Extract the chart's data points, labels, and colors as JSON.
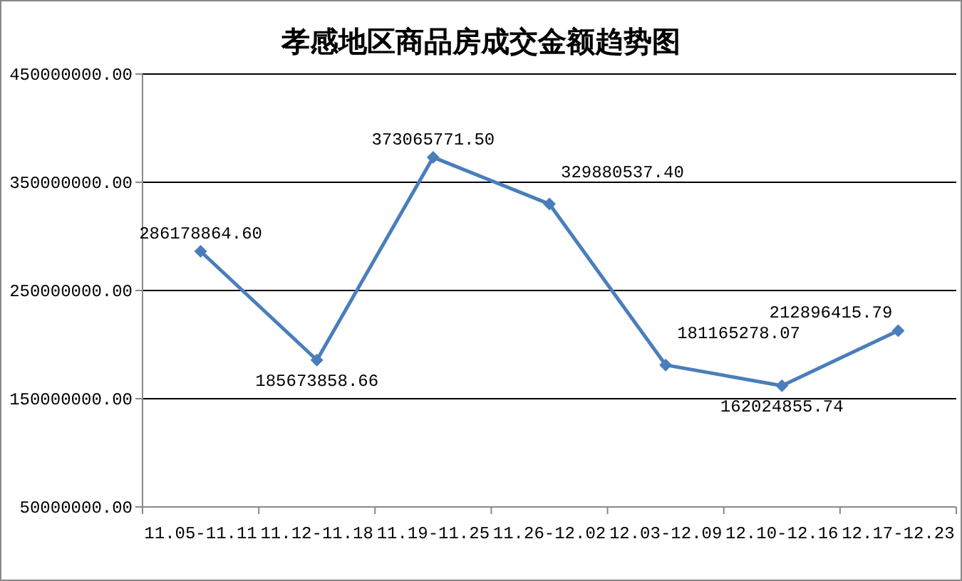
{
  "chart_data": {
    "type": "line",
    "title": "孝感地区商品房成交金额趋势图",
    "categories": [
      "11.05-11.11",
      "11.12-11.18",
      "11.19-11.25",
      "11.26-12.02",
      "12.03-12.09",
      "12.10-12.16",
      "12.17-12.23"
    ],
    "series": [
      {
        "color": "#4a7ebb",
        "values": [
          286178864.6,
          185673858.66,
          373065771.5,
          329880537.4,
          181165278.07,
          162024855.74,
          212896415.79
        ],
        "value_labels": [
          "286178864.60",
          "185673858.66",
          "373065771.50",
          "329880537.40",
          "181165278.07",
          "162024855.74",
          "212896415.79"
        ]
      }
    ],
    "ylim": [
      50000000,
      450000000
    ],
    "yticks": [
      {
        "value": 50000000,
        "label": "50000000.00"
      },
      {
        "value": 150000000,
        "label": "150000000.00"
      },
      {
        "value": 250000000,
        "label": "250000000.00"
      },
      {
        "value": 350000000,
        "label": "350000000.00"
      },
      {
        "value": 450000000,
        "label": "450000000.00"
      }
    ],
    "grid": "y",
    "marker": "diamond"
  }
}
